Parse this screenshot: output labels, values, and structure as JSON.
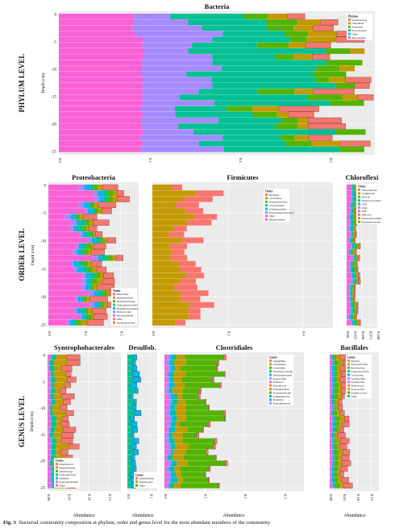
{
  "panels": [
    {
      "id": "bacteria",
      "title": "Bacteria",
      "legend_title": "Phylum",
      "legend": [
        "Actinobacteria",
        "Chloroflexi",
        "Firmicutes",
        "Proteobacteria",
        "Other",
        "Bacteroidetes"
      ],
      "xticks": [
        "0.0",
        "0.2",
        "0.4",
        "0.6"
      ],
      "xmax": 0.7
    },
    {
      "id": "proteobacteria",
      "title": "Proteobacteria",
      "legend_title": "Order",
      "legend": [
        "Rhizobiales",
        "Burkholderiales",
        "Desulfobacterales",
        "Syntrophobacterales",
        "Desulfuromonadales",
        "Myxococcales",
        "Rhodospirillales",
        "Other",
        "Xanthomonadales"
      ],
      "xticks": [
        "0.0",
        "0.1",
        "0.2"
      ],
      "xmax": 0.25
    },
    {
      "id": "firmicutes",
      "title": "Firmicutes",
      "legend_title": "Order",
      "legend": [
        "Bacillales",
        "Clostridiales",
        "Erysipelotrichales",
        "Lactobacillales",
        "Selenomonadales",
        "Thermoanaerobacterales",
        "Other",
        "Halanaerobiales"
      ],
      "xticks": [
        "0.0",
        "0.2",
        "0.4"
      ],
      "xmax": 0.48
    },
    {
      "id": "chloroflexi",
      "title": "Chloroflexi",
      "legend_title": "Order",
      "legend": [
        "Anaerolineales",
        "Caldilineales",
        "SHA-20",
        "Dehalococcoidales",
        "GIF9",
        "Other",
        "S085",
        "SBR1031",
        "Thermomicrobiales",
        "Ktedonobacterales"
      ],
      "xticks": [
        "0.00",
        "0.025",
        "0.050",
        "0.075",
        "0.100"
      ],
      "xmax": 0.1
    },
    {
      "id": "syntrophobacterales",
      "title": "Syntrophobacterales",
      "legend_title": "Genus",
      "legend": [
        "Desulfobacca",
        "Desulforhabdus",
        "Desulfovirga",
        "Syntrophobacter",
        "Smithella",
        "Syntrophorhabdus",
        "Other"
      ],
      "xticks": [
        "0.00",
        "0.05",
        "0.10",
        "0.15"
      ],
      "xmax": 0.18
    },
    {
      "id": "desulfob",
      "title": "Desulfob.",
      "legend_title": "Genus",
      "legend": [
        "Desulfobulbus",
        "Desulfocapsa",
        "Other"
      ],
      "xticks": [
        "0.0",
        "0.1"
      ],
      "xmax": 0.13
    },
    {
      "id": "clostridiales",
      "title": "Clostridiales",
      "legend_title": "Genus",
      "legend": [
        "Alkaliphilus",
        "Caloramator",
        "Clostridium",
        "Desulfitobacterium",
        "Desulfosporosinus",
        "Eubacterium",
        "Fusibacter",
        "Natronincola",
        "Pelotomaculum",
        "Proteiniclasticum",
        "Sedimentibacter",
        "Tissierella",
        "Syntrophomonas"
      ],
      "xticks": [
        "0.0",
        "0.1",
        "0.2",
        "0.3"
      ],
      "xmax": 0.35
    },
    {
      "id": "bacillales",
      "title": "Bacillales",
      "legend_title": "Genus",
      "legend": [
        "Bacillus",
        "Alicyclobacillus",
        "Brevibacillus",
        "Exiguobacterium",
        "Geobacillus",
        "Lysinibacillus",
        "Paenibacillus",
        "Planococcus",
        "Sporosarcina",
        "Staphylococcus",
        "Other"
      ],
      "xticks": [
        "0.00",
        "0.05",
        "0.10",
        "0.15"
      ],
      "xmax": 0.18
    }
  ],
  "row_labels": [
    "PHYLUM LEVEL",
    "ORDER LEVEL",
    "GENUS LEVEL"
  ],
  "y_axis_label": "Depth (cm)",
  "x_axis_label": "Abundance",
  "yticks": [
    "0",
    "-5",
    "-10",
    "-15",
    "-20",
    "-25"
  ],
  "caption": {
    "label": "Fig. 3",
    "text": "Bacterial community composition at phylum, order and genus level for the most abundant members of the community"
  },
  "colors": {
    "panel_bg": "#ebebeb",
    "grid": "#ffffff",
    "series": [
      "#f8766d",
      "#c49a00",
      "#53b400",
      "#00c094",
      "#00b6eb",
      "#a58aff",
      "#fb61d7"
    ]
  }
}
